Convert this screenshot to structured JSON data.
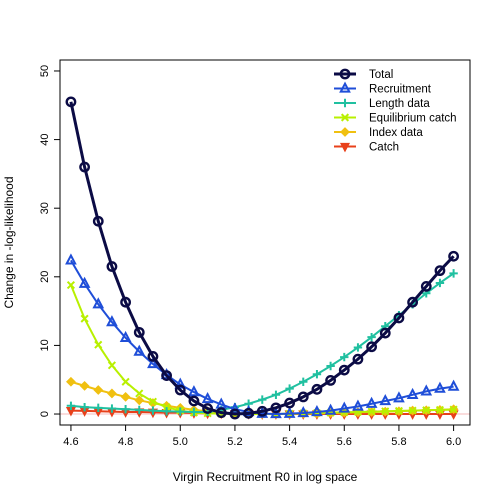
{
  "chart_data": {
    "type": "line",
    "title": "",
    "xlabel": "Virgin Recruitment R0 in log space",
    "ylabel": "Change in -log-likelihood",
    "xlim": [
      4.56,
      6.06
    ],
    "ylim": [
      -1.6,
      51.6
    ],
    "xticks": [
      "4.6",
      "4.8",
      "5.0",
      "5.2",
      "5.4",
      "5.6",
      "5.8",
      "6.0"
    ],
    "yticks": [
      "0",
      "10",
      "20",
      "30",
      "40",
      "50"
    ],
    "grid": false,
    "legend_position": "top-right",
    "zero_line_color": "#f4b8b8",
    "x": [
      4.6,
      4.65,
      4.7,
      4.75,
      4.8,
      4.85,
      4.9,
      4.95,
      5.0,
      5.05,
      5.1,
      5.15,
      5.2,
      5.25,
      5.3,
      5.35,
      5.4,
      5.45,
      5.5,
      5.55,
      5.6,
      5.65,
      5.7,
      5.75,
      5.8,
      5.85,
      5.9,
      5.95,
      6.0
    ],
    "series": [
      {
        "name": "Total",
        "color": "#0b0b45",
        "marker": "circle",
        "values": [
          45.5,
          36.0,
          28.1,
          21.5,
          16.3,
          11.9,
          8.4,
          5.6,
          3.5,
          1.9,
          0.8,
          0.2,
          0.0,
          0.1,
          0.4,
          0.9,
          1.6,
          2.5,
          3.6,
          4.9,
          6.4,
          8.0,
          9.8,
          11.8,
          14.0,
          16.3,
          18.6,
          20.9,
          23.0
        ]
      },
      {
        "name": "Recruitment",
        "color": "#1f4ed8",
        "marker": "triangle-up",
        "values": [
          22.4,
          19.0,
          16.0,
          13.4,
          11.1,
          9.1,
          7.3,
          5.7,
          4.3,
          3.2,
          2.2,
          1.4,
          0.7,
          0.3,
          0.05,
          0.0,
          0.05,
          0.15,
          0.3,
          0.5,
          0.8,
          1.1,
          1.5,
          1.9,
          2.3,
          2.8,
          3.3,
          3.7,
          4.0
        ]
      },
      {
        "name": "Length data",
        "color": "#20c0a0",
        "marker": "plus",
        "values": [
          1.2,
          1.0,
          0.9,
          0.8,
          0.7,
          0.6,
          0.5,
          0.4,
          0.35,
          0.3,
          0.3,
          0.6,
          1.0,
          1.5,
          2.1,
          2.8,
          3.7,
          4.7,
          5.8,
          7.0,
          8.3,
          9.7,
          11.2,
          12.8,
          14.4,
          16.0,
          17.6,
          19.1,
          20.5
        ]
      },
      {
        "name": "Equilibrium catch",
        "color": "#b8f000",
        "marker": "x",
        "values": [
          18.8,
          13.9,
          10.1,
          7.1,
          4.7,
          3.0,
          1.8,
          1.0,
          0.5,
          0.2,
          0.1,
          0.05,
          0.0,
          0.0,
          0.0,
          0.0,
          0.05,
          0.1,
          0.15,
          0.2,
          0.25,
          0.3,
          0.35,
          0.4,
          0.45,
          0.5,
          0.55,
          0.6,
          0.65
        ]
      },
      {
        "name": "Index data",
        "color": "#f0c010",
        "marker": "diamond",
        "values": [
          4.7,
          4.1,
          3.5,
          3.0,
          2.5,
          2.0,
          1.6,
          1.2,
          0.9,
          0.6,
          0.4,
          0.2,
          0.1,
          0.05,
          0.0,
          0.0,
          0.0,
          0.05,
          0.1,
          0.15,
          0.2,
          0.25,
          0.3,
          0.35,
          0.4,
          0.5,
          0.55,
          0.6,
          0.7
        ]
      },
      {
        "name": "Catch",
        "color": "#e8401a",
        "marker": "triangle-down",
        "values": [
          0.5,
          0.45,
          0.4,
          0.35,
          0.3,
          0.3,
          0.25,
          0.2,
          0.2,
          0.15,
          0.1,
          0.1,
          0.05,
          0.05,
          0.0,
          0.0,
          0.0,
          0.0,
          0.0,
          0.0,
          0.0,
          0.0,
          0.0,
          0.0,
          0.0,
          0.0,
          0.0,
          0.0,
          0.0
        ]
      }
    ]
  }
}
